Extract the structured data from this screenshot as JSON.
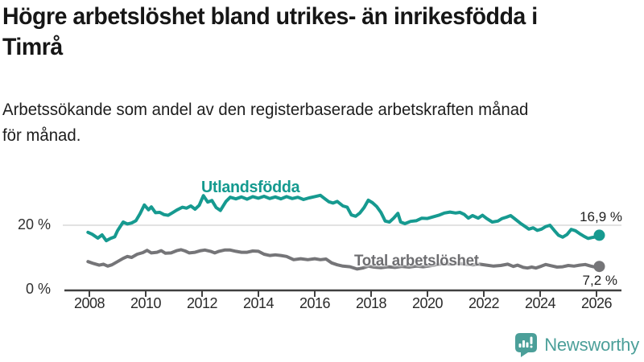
{
  "header": {
    "title_lines": [
      "Högre arbetslöshet bland utrikes- än inrikesfödda i",
      "Timrå"
    ],
    "subtitle_lines": [
      "Arbetssökande som andel av den registerbaserade arbetskraften månad",
      "för månad."
    ]
  },
  "chart_data": {
    "type": "line",
    "title": "Högre arbetslöshet bland utrikes- än inrikesfödda i Timrå",
    "subtitle": "Arbetssökande som andel av den registerbaserade arbetskraften månad för månad.",
    "unit": "%",
    "xlim": [
      2007.1,
      2026.9
    ],
    "ylim": [
      0,
      35
    ],
    "grid": "single-line-at-20",
    "x_ticks": [
      2008,
      2010,
      2012,
      2014,
      2016,
      2018,
      2020,
      2022,
      2024,
      2026
    ],
    "y_ticks": [
      {
        "value": 20,
        "label": "20 %"
      },
      {
        "value": 0,
        "label": "0 %"
      }
    ],
    "colors": {
      "axis": "#404040",
      "grid": "#d9d9d9"
    },
    "series": [
      {
        "name": "Utlandsfödda",
        "color": "#169a90",
        "end_label": "16,9 %",
        "end_value": 16.9,
        "points": [
          [
            2007.95,
            17.8
          ],
          [
            2008.1,
            17.2
          ],
          [
            2008.3,
            16.0
          ],
          [
            2008.45,
            17.0
          ],
          [
            2008.6,
            15.2
          ],
          [
            2008.75,
            15.9
          ],
          [
            2008.9,
            16.4
          ],
          [
            2009.0,
            18.3
          ],
          [
            2009.2,
            21.0
          ],
          [
            2009.35,
            20.4
          ],
          [
            2009.5,
            20.7
          ],
          [
            2009.65,
            21.4
          ],
          [
            2009.8,
            23.6
          ],
          [
            2009.95,
            26.3
          ],
          [
            2010.1,
            24.8
          ],
          [
            2010.2,
            25.7
          ],
          [
            2010.35,
            23.9
          ],
          [
            2010.5,
            24.0
          ],
          [
            2010.65,
            23.3
          ],
          [
            2010.8,
            23.1
          ],
          [
            2010.95,
            23.9
          ],
          [
            2011.1,
            24.7
          ],
          [
            2011.3,
            25.6
          ],
          [
            2011.45,
            25.3
          ],
          [
            2011.6,
            26.0
          ],
          [
            2011.75,
            25.0
          ],
          [
            2011.9,
            26.2
          ],
          [
            2012.05,
            29.2
          ],
          [
            2012.2,
            27.2
          ],
          [
            2012.35,
            27.7
          ],
          [
            2012.5,
            25.5
          ],
          [
            2012.65,
            24.6
          ],
          [
            2012.85,
            27.4
          ],
          [
            2013.0,
            28.7
          ],
          [
            2013.2,
            28.2
          ],
          [
            2013.4,
            28.8
          ],
          [
            2013.6,
            28.1
          ],
          [
            2013.8,
            28.9
          ],
          [
            2014.0,
            28.4
          ],
          [
            2014.2,
            29.0
          ],
          [
            2014.4,
            28.3
          ],
          [
            2014.6,
            28.8
          ],
          [
            2014.8,
            28.2
          ],
          [
            2015.0,
            28.9
          ],
          [
            2015.2,
            28.3
          ],
          [
            2015.4,
            28.7
          ],
          [
            2015.6,
            28.0
          ],
          [
            2015.8,
            28.5
          ],
          [
            2016.0,
            28.9
          ],
          [
            2016.2,
            29.3
          ],
          [
            2016.35,
            28.3
          ],
          [
            2016.5,
            27.3
          ],
          [
            2016.65,
            26.9
          ],
          [
            2016.8,
            27.4
          ],
          [
            2017.0,
            26.0
          ],
          [
            2017.15,
            25.6
          ],
          [
            2017.3,
            23.2
          ],
          [
            2017.45,
            22.8
          ],
          [
            2017.6,
            23.8
          ],
          [
            2017.75,
            25.5
          ],
          [
            2017.9,
            27.8
          ],
          [
            2018.05,
            27.0
          ],
          [
            2018.2,
            25.8
          ],
          [
            2018.35,
            24.0
          ],
          [
            2018.5,
            21.3
          ],
          [
            2018.65,
            21.0
          ],
          [
            2018.8,
            22.2
          ],
          [
            2018.95,
            23.7
          ],
          [
            2019.05,
            21.0
          ],
          [
            2019.2,
            20.5
          ],
          [
            2019.4,
            21.2
          ],
          [
            2019.6,
            21.4
          ],
          [
            2019.8,
            22.2
          ],
          [
            2020.0,
            22.1
          ],
          [
            2020.2,
            22.6
          ],
          [
            2020.4,
            23.1
          ],
          [
            2020.6,
            23.8
          ],
          [
            2020.8,
            24.1
          ],
          [
            2021.0,
            23.8
          ],
          [
            2021.15,
            24.0
          ],
          [
            2021.3,
            23.4
          ],
          [
            2021.45,
            22.2
          ],
          [
            2021.6,
            23.0
          ],
          [
            2021.8,
            22.2
          ],
          [
            2021.95,
            23.1
          ],
          [
            2022.1,
            22.1
          ],
          [
            2022.3,
            21.0
          ],
          [
            2022.5,
            21.3
          ],
          [
            2022.65,
            22.1
          ],
          [
            2022.8,
            22.5
          ],
          [
            2022.95,
            23.0
          ],
          [
            2023.1,
            22.0
          ],
          [
            2023.3,
            20.6
          ],
          [
            2023.45,
            19.7
          ],
          [
            2023.6,
            18.8
          ],
          [
            2023.75,
            19.2
          ],
          [
            2023.9,
            18.4
          ],
          [
            2024.05,
            18.8
          ],
          [
            2024.2,
            19.6
          ],
          [
            2024.35,
            20.0
          ],
          [
            2024.5,
            18.4
          ],
          [
            2024.65,
            16.9
          ],
          [
            2024.8,
            16.3
          ],
          [
            2024.95,
            17.1
          ],
          [
            2025.1,
            18.7
          ],
          [
            2025.25,
            18.3
          ],
          [
            2025.4,
            17.4
          ],
          [
            2025.55,
            16.6
          ],
          [
            2025.7,
            15.9
          ],
          [
            2025.85,
            16.2
          ],
          [
            2026.0,
            16.4
          ],
          [
            2026.1,
            16.9
          ]
        ]
      },
      {
        "name": "Total arbetslöshet",
        "color": "#757578",
        "end_label": "7,2 %",
        "end_value": 7.2,
        "points": [
          [
            2007.95,
            8.7
          ],
          [
            2008.15,
            8.1
          ],
          [
            2008.35,
            7.6
          ],
          [
            2008.5,
            7.9
          ],
          [
            2008.65,
            7.3
          ],
          [
            2008.8,
            7.7
          ],
          [
            2009.0,
            8.7
          ],
          [
            2009.2,
            9.7
          ],
          [
            2009.35,
            10.3
          ],
          [
            2009.5,
            10.0
          ],
          [
            2009.7,
            11.0
          ],
          [
            2009.9,
            11.5
          ],
          [
            2010.05,
            12.2
          ],
          [
            2010.2,
            11.4
          ],
          [
            2010.4,
            11.6
          ],
          [
            2010.55,
            12.1
          ],
          [
            2010.7,
            11.3
          ],
          [
            2010.9,
            11.4
          ],
          [
            2011.1,
            12.1
          ],
          [
            2011.25,
            12.4
          ],
          [
            2011.4,
            12.0
          ],
          [
            2011.55,
            11.4
          ],
          [
            2011.75,
            11.6
          ],
          [
            2011.95,
            12.1
          ],
          [
            2012.1,
            12.3
          ],
          [
            2012.3,
            11.9
          ],
          [
            2012.45,
            11.4
          ],
          [
            2012.6,
            11.9
          ],
          [
            2012.8,
            12.3
          ],
          [
            2013.0,
            12.3
          ],
          [
            2013.2,
            11.9
          ],
          [
            2013.4,
            11.6
          ],
          [
            2013.6,
            11.6
          ],
          [
            2013.8,
            12.0
          ],
          [
            2014.0,
            11.9
          ],
          [
            2014.2,
            11.0
          ],
          [
            2014.4,
            10.6
          ],
          [
            2014.6,
            10.8
          ],
          [
            2014.8,
            10.6
          ],
          [
            2015.0,
            10.3
          ],
          [
            2015.25,
            9.3
          ],
          [
            2015.5,
            9.6
          ],
          [
            2015.75,
            9.3
          ],
          [
            2016.0,
            9.6
          ],
          [
            2016.2,
            9.3
          ],
          [
            2016.4,
            9.5
          ],
          [
            2016.6,
            8.3
          ],
          [
            2016.8,
            7.7
          ],
          [
            2017.0,
            7.3
          ],
          [
            2017.25,
            7.1
          ],
          [
            2017.5,
            6.4
          ],
          [
            2017.7,
            6.7
          ],
          [
            2017.9,
            7.3
          ],
          [
            2018.1,
            7.0
          ],
          [
            2018.35,
            6.8
          ],
          [
            2018.6,
            7.1
          ],
          [
            2018.85,
            6.9
          ],
          [
            2019.1,
            7.2
          ],
          [
            2019.35,
            7.0
          ],
          [
            2019.6,
            7.3
          ],
          [
            2019.85,
            7.1
          ],
          [
            2020.1,
            7.4
          ],
          [
            2020.35,
            7.8
          ],
          [
            2020.6,
            8.1
          ],
          [
            2020.85,
            7.9
          ],
          [
            2021.1,
            8.2
          ],
          [
            2021.35,
            7.9
          ],
          [
            2021.6,
            7.7
          ],
          [
            2021.85,
            7.9
          ],
          [
            2022.1,
            7.6
          ],
          [
            2022.35,
            7.3
          ],
          [
            2022.6,
            7.5
          ],
          [
            2022.85,
            7.9
          ],
          [
            2023.05,
            7.2
          ],
          [
            2023.2,
            7.6
          ],
          [
            2023.4,
            6.9
          ],
          [
            2023.55,
            6.7
          ],
          [
            2023.7,
            7.0
          ],
          [
            2023.85,
            6.7
          ],
          [
            2024.05,
            7.3
          ],
          [
            2024.2,
            7.8
          ],
          [
            2024.4,
            7.4
          ],
          [
            2024.6,
            7.0
          ],
          [
            2024.8,
            7.1
          ],
          [
            2025.0,
            7.5
          ],
          [
            2025.2,
            7.3
          ],
          [
            2025.4,
            7.6
          ],
          [
            2025.6,
            7.8
          ],
          [
            2025.8,
            7.3
          ],
          [
            2025.95,
            7.0
          ],
          [
            2026.1,
            7.2
          ]
        ]
      }
    ]
  },
  "footer": {
    "brand": "Newsworthy",
    "brand_color": "#4b9f99"
  }
}
